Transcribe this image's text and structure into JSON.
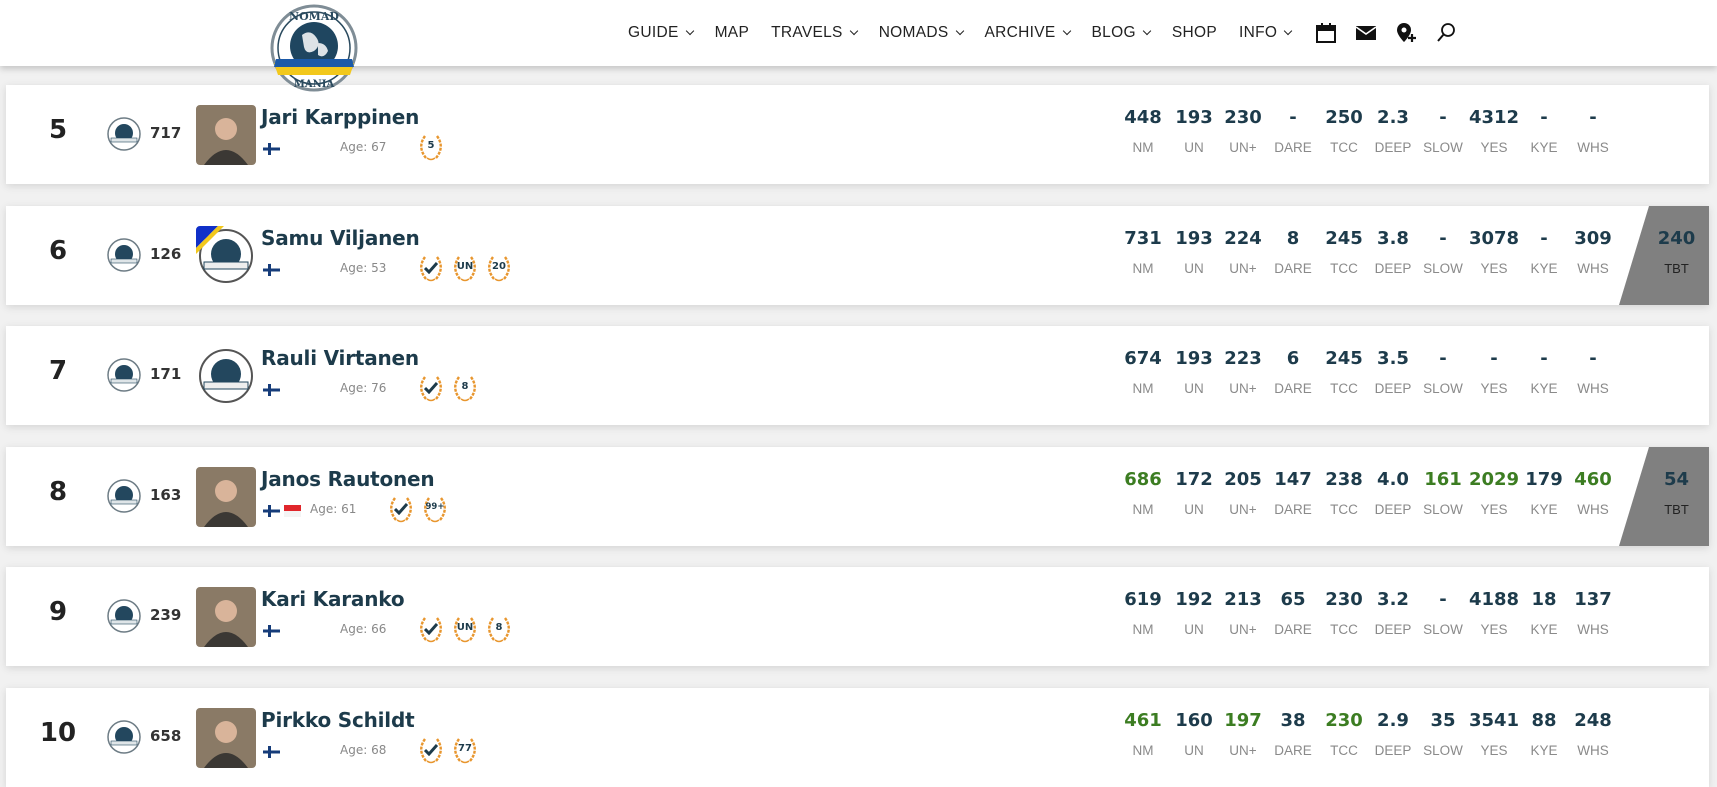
{
  "logo_text": "NOMAD WORLD MANIA",
  "nav": {
    "items": [
      {
        "label": "GUIDE",
        "dropdown": true
      },
      {
        "label": "MAP",
        "dropdown": false
      },
      {
        "label": "TRAVELS",
        "dropdown": true
      },
      {
        "label": "NOMADS",
        "dropdown": true
      },
      {
        "label": "ARCHIVE",
        "dropdown": true
      },
      {
        "label": "BLOG",
        "dropdown": true
      },
      {
        "label": "SHOP",
        "dropdown": false
      },
      {
        "label": "INFO",
        "dropdown": true
      }
    ],
    "icons": [
      "calendar-icon",
      "mail-icon",
      "add-location-icon",
      "search-icon"
    ]
  },
  "colors": {
    "value": "#1d3b4b",
    "green": "#3c7d22",
    "tbt_bg": "#808080",
    "badge": "#e8962e"
  },
  "stat_labels": [
    "NM",
    "UN",
    "UN+",
    "DARE",
    "TCC",
    "DEEP",
    "SLOW",
    "YES",
    "KYE",
    "WHS"
  ],
  "tbt_label": "TBT",
  "rows": [
    {
      "rank": "5",
      "nm_rank": "717",
      "name": "Jari Karppinen",
      "avatar": "photo",
      "flags": [
        "fi"
      ],
      "age": "Age: 67",
      "badges": [
        "5"
      ],
      "stats": [
        {
          "v": "448"
        },
        {
          "v": "193"
        },
        {
          "v": "230"
        },
        {
          "v": "-"
        },
        {
          "v": "250"
        },
        {
          "v": "2.3"
        },
        {
          "v": "-"
        },
        {
          "v": "4312"
        },
        {
          "v": "-"
        },
        {
          "v": "-"
        }
      ],
      "tbt": null
    },
    {
      "rank": "6",
      "nm_rank": "126",
      "name": "Samu Viljanen",
      "avatar": "logo-ua",
      "flags": [
        "fi"
      ],
      "age": "Age: 53",
      "badges": [
        "check",
        "UN",
        "20"
      ],
      "stats": [
        {
          "v": "731"
        },
        {
          "v": "193"
        },
        {
          "v": "224"
        },
        {
          "v": "8"
        },
        {
          "v": "245"
        },
        {
          "v": "3.8"
        },
        {
          "v": "-"
        },
        {
          "v": "3078"
        },
        {
          "v": "-"
        },
        {
          "v": "309"
        }
      ],
      "tbt": "240"
    },
    {
      "rank": "7",
      "nm_rank": "171",
      "name": "Rauli Virtanen",
      "avatar": "logo",
      "flags": [
        "fi"
      ],
      "age": "Age: 76",
      "badges": [
        "check",
        "8"
      ],
      "stats": [
        {
          "v": "674"
        },
        {
          "v": "193"
        },
        {
          "v": "223"
        },
        {
          "v": "6"
        },
        {
          "v": "245"
        },
        {
          "v": "3.5"
        },
        {
          "v": "-"
        },
        {
          "v": "-"
        },
        {
          "v": "-"
        },
        {
          "v": "-"
        }
      ],
      "tbt": null
    },
    {
      "rank": "8",
      "nm_rank": "163",
      "name": "Janos Rautonen",
      "avatar": "photo",
      "flags": [
        "fi",
        "sg"
      ],
      "age": "Age: 61",
      "badges": [
        "check",
        "99+"
      ],
      "stats": [
        {
          "v": "686",
          "g": true
        },
        {
          "v": "172"
        },
        {
          "v": "205"
        },
        {
          "v": "147"
        },
        {
          "v": "238"
        },
        {
          "v": "4.0"
        },
        {
          "v": "161",
          "g": true
        },
        {
          "v": "2029",
          "g": true
        },
        {
          "v": "179"
        },
        {
          "v": "460",
          "g": true
        }
      ],
      "tbt": "54"
    },
    {
      "rank": "9",
      "nm_rank": "239",
      "name": "Kari Karanko",
      "avatar": "photo",
      "flags": [
        "fi"
      ],
      "age": "Age: 66",
      "badges": [
        "check",
        "UN",
        "8"
      ],
      "stats": [
        {
          "v": "619"
        },
        {
          "v": "192"
        },
        {
          "v": "213"
        },
        {
          "v": "65"
        },
        {
          "v": "230"
        },
        {
          "v": "3.2"
        },
        {
          "v": "-"
        },
        {
          "v": "4188"
        },
        {
          "v": "18"
        },
        {
          "v": "137"
        }
      ],
      "tbt": null
    },
    {
      "rank": "10",
      "nm_rank": "658",
      "name": "Pirkko Schildt",
      "avatar": "photo",
      "flags": [
        "fi"
      ],
      "age": "Age: 68",
      "badges": [
        "check",
        "77"
      ],
      "stats": [
        {
          "v": "461",
          "g": true
        },
        {
          "v": "160"
        },
        {
          "v": "197",
          "g": true
        },
        {
          "v": "38"
        },
        {
          "v": "230",
          "g": true
        },
        {
          "v": "2.9"
        },
        {
          "v": "35"
        },
        {
          "v": "3541"
        },
        {
          "v": "88"
        },
        {
          "v": "248"
        }
      ],
      "tbt": null
    }
  ]
}
